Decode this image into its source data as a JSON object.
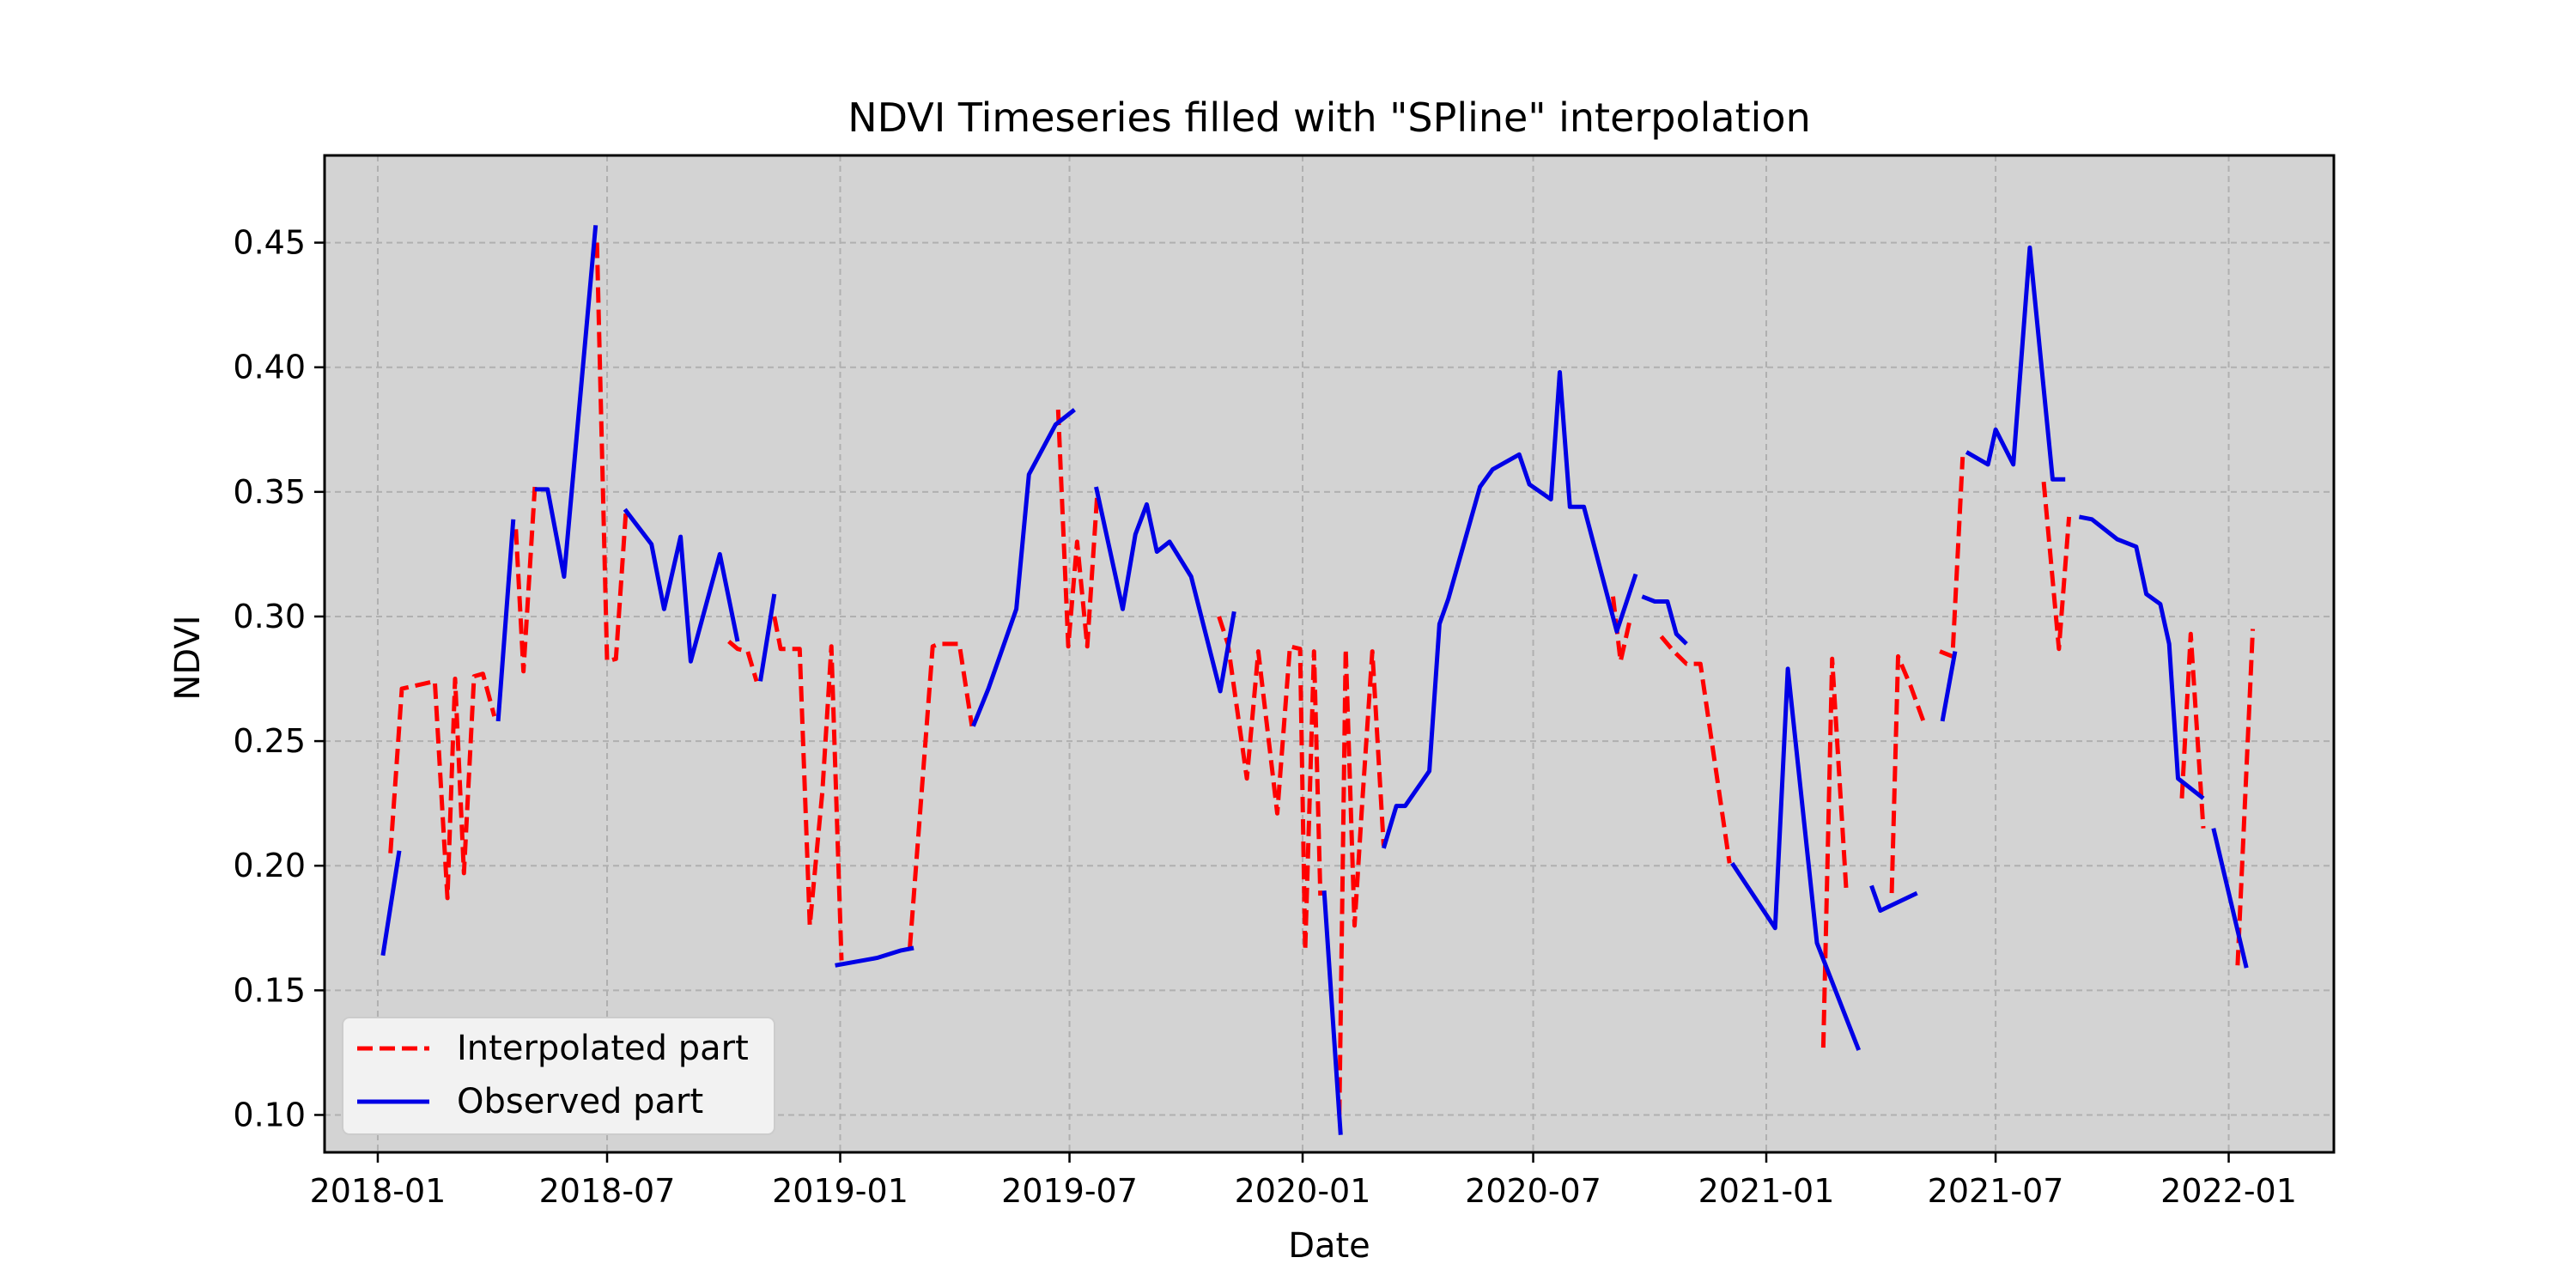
{
  "chart_data": {
    "type": "line",
    "title": "NDVI Timeseries filled with \"SPline\" interpolation",
    "xlabel": "Date",
    "ylabel": "NDVI",
    "x_tick_labels": [
      "2018-01",
      "2018-07",
      "2019-01",
      "2019-07",
      "2020-01",
      "2020-07",
      "2021-01",
      "2021-07",
      "2022-01"
    ],
    "y_tick_labels": [
      "0.10",
      "0.15",
      "0.20",
      "0.25",
      "0.30",
      "0.35",
      "0.40",
      "0.45"
    ],
    "ylim": [
      0.085,
      0.485
    ],
    "xlim": [
      "2017-11-20",
      "2022-03-25"
    ],
    "grid": true,
    "background": "#d3d3d3",
    "legend_position": "lower-left",
    "series": [
      {
        "name": "Interpolated part",
        "color": "#ff0000",
        "style": "dashed",
        "points": [
          [
            "2018-01-11",
            0.205
          ],
          [
            "2018-01-20",
            0.271
          ],
          [
            "2018-02-15",
            0.274
          ],
          [
            "2018-02-25",
            0.187
          ],
          [
            "2018-03-03",
            0.275
          ],
          [
            "2018-03-10",
            0.197
          ],
          [
            "2018-03-18",
            0.276
          ],
          [
            "2018-03-25",
            0.277
          ],
          [
            "2018-04-03",
            0.26
          ],
          null,
          [
            "2018-04-20",
            0.335
          ],
          [
            "2018-04-26",
            0.278
          ],
          [
            "2018-05-05",
            0.352
          ],
          null,
          [
            "2018-06-23",
            0.45
          ],
          [
            "2018-07-01",
            0.282
          ],
          [
            "2018-07-08",
            0.283
          ],
          [
            "2018-07-16",
            0.343
          ],
          null,
          [
            "2018-10-05",
            0.29
          ],
          [
            "2018-10-12",
            0.287
          ],
          [
            "2018-10-20",
            0.286
          ],
          [
            "2018-10-27",
            0.274
          ],
          null,
          [
            "2018-11-10",
            0.3
          ],
          [
            "2018-11-15",
            0.287
          ],
          [
            "2018-11-30",
            0.287
          ],
          [
            "2018-12-08",
            0.176
          ],
          [
            "2018-12-18",
            0.23
          ],
          [
            "2018-12-25",
            0.288
          ],
          [
            "2019-01-02",
            0.162
          ],
          null,
          [
            "2019-02-25",
            0.167
          ],
          [
            "2019-03-15",
            0.288
          ],
          [
            "2019-03-20",
            0.289
          ],
          [
            "2019-04-05",
            0.289
          ],
          [
            "2019-04-15",
            0.256
          ],
          null,
          [
            "2019-06-22",
            0.383
          ],
          [
            "2019-06-30",
            0.288
          ],
          [
            "2019-07-07",
            0.33
          ],
          [
            "2019-07-15",
            0.288
          ],
          [
            "2019-07-23",
            0.35
          ],
          null,
          [
            "2019-10-27",
            0.3
          ],
          [
            "2019-11-03",
            0.289
          ],
          [
            "2019-11-18",
            0.235
          ],
          [
            "2019-11-27",
            0.286
          ],
          [
            "2019-12-12",
            0.221
          ],
          [
            "2019-12-22",
            0.288
          ],
          [
            "2019-12-30",
            0.287
          ],
          [
            "2020-01-03",
            0.166
          ],
          [
            "2020-01-10",
            0.286
          ],
          [
            "2020-01-15",
            0.188
          ],
          null,
          [
            "2020-01-30",
            0.1
          ],
          [
            "2020-02-04",
            0.287
          ],
          [
            "2020-02-11",
            0.176
          ],
          [
            "2020-02-17",
            0.225
          ],
          [
            "2020-02-25",
            0.286
          ],
          [
            "2020-03-05",
            0.208
          ],
          null,
          [
            "2020-09-02",
            0.308
          ],
          [
            "2020-09-08",
            0.282
          ],
          [
            "2020-09-16",
            0.3
          ],
          null,
          [
            "2020-10-10",
            0.292
          ],
          [
            "2020-10-20",
            0.286
          ],
          [
            "2020-10-30",
            0.281
          ],
          [
            "2020-11-10",
            0.281
          ],
          [
            "2020-12-03",
            0.201
          ],
          null,
          [
            "2021-02-15",
            0.127
          ],
          [
            "2021-02-22",
            0.283
          ],
          [
            "2021-03-05",
            0.191
          ],
          null,
          [
            "2021-04-10",
            0.189
          ],
          [
            "2021-04-15",
            0.284
          ],
          [
            "2021-04-25",
            0.272
          ],
          [
            "2021-05-05",
            0.258
          ],
          null,
          [
            "2021-05-18",
            0.286
          ],
          [
            "2021-05-28",
            0.284
          ],
          [
            "2021-06-05",
            0.364
          ],
          null,
          [
            "2021-08-08",
            0.354
          ],
          [
            "2021-08-20",
            0.287
          ],
          [
            "2021-08-28",
            0.34
          ],
          null,
          [
            "2021-11-25",
            0.227
          ],
          [
            "2021-12-02",
            0.293
          ],
          [
            "2021-12-12",
            0.215
          ],
          null,
          [
            "2022-01-08",
            0.16
          ],
          [
            "2022-01-20",
            0.295
          ]
        ]
      },
      {
        "name": "Observed part",
        "color": "#0000e6",
        "style": "solid",
        "points": [
          [
            "2018-01-05",
            0.164
          ],
          [
            "2018-01-18",
            0.206
          ],
          null,
          [
            "2018-04-06",
            0.258
          ],
          [
            "2018-04-18",
            0.339
          ],
          null,
          [
            "2018-05-05",
            0.351
          ],
          [
            "2018-05-15",
            0.351
          ],
          [
            "2018-05-28",
            0.316
          ],
          [
            "2018-06-22",
            0.457
          ],
          null,
          [
            "2018-07-15",
            0.343
          ],
          [
            "2018-08-05",
            0.329
          ],
          [
            "2018-08-15",
            0.303
          ],
          [
            "2018-08-28",
            0.332
          ],
          [
            "2018-09-05",
            0.282
          ],
          [
            "2018-09-28",
            0.325
          ],
          [
            "2018-10-12",
            0.29
          ],
          null,
          [
            "2018-10-30",
            0.274
          ],
          [
            "2018-11-10",
            0.309
          ],
          null,
          [
            "2018-12-28",
            0.16
          ],
          [
            "2019-01-30",
            0.163
          ],
          [
            "2019-02-18",
            0.166
          ],
          [
            "2019-02-28",
            0.167
          ],
          null,
          [
            "2019-04-16",
            0.256
          ],
          [
            "2019-04-28",
            0.271
          ],
          [
            "2019-05-20",
            0.303
          ],
          [
            "2019-05-30",
            0.357
          ],
          [
            "2019-06-20",
            0.377
          ],
          [
            "2019-07-05",
            0.383
          ],
          null,
          [
            "2019-07-22",
            0.352
          ],
          [
            "2019-08-12",
            0.303
          ],
          [
            "2019-08-22",
            0.333
          ],
          [
            "2019-08-31",
            0.345
          ],
          [
            "2019-09-08",
            0.326
          ],
          [
            "2019-09-18",
            0.33
          ],
          [
            "2019-10-05",
            0.316
          ],
          [
            "2019-10-28",
            0.27
          ],
          [
            "2019-11-08",
            0.302
          ],
          null,
          [
            "2020-01-18",
            0.19
          ],
          [
            "2020-01-31",
            0.092
          ],
          null,
          [
            "2020-03-05",
            0.207
          ],
          [
            "2020-03-15",
            0.224
          ],
          [
            "2020-03-22",
            0.224
          ],
          [
            "2020-04-10",
            0.238
          ],
          [
            "2020-04-18",
            0.297
          ],
          [
            "2020-04-25",
            0.307
          ],
          [
            "2020-05-20",
            0.352
          ],
          [
            "2020-05-30",
            0.359
          ],
          [
            "2020-06-20",
            0.365
          ],
          [
            "2020-06-28",
            0.353
          ],
          [
            "2020-07-15",
            0.347
          ],
          [
            "2020-07-22",
            0.398
          ],
          [
            "2020-07-30",
            0.344
          ],
          [
            "2020-08-10",
            0.344
          ],
          [
            "2020-09-05",
            0.294
          ],
          [
            "2020-09-20",
            0.317
          ],
          null,
          [
            "2020-09-25",
            0.308
          ],
          [
            "2020-10-05",
            0.306
          ],
          [
            "2020-10-15",
            0.306
          ],
          [
            "2020-10-22",
            0.293
          ],
          [
            "2020-10-30",
            0.289
          ],
          null,
          [
            "2020-12-05",
            0.201
          ],
          [
            "2021-01-08",
            0.175
          ],
          [
            "2021-01-18",
            0.279
          ],
          [
            "2021-02-10",
            0.169
          ],
          [
            "2021-03-15",
            0.126
          ],
          null,
          [
            "2021-03-25",
            0.192
          ],
          [
            "2021-04-01",
            0.182
          ],
          [
            "2021-04-30",
            0.189
          ],
          null,
          [
            "2021-05-20",
            0.258
          ],
          [
            "2021-05-30",
            0.286
          ],
          null,
          [
            "2021-06-08",
            0.366
          ],
          [
            "2021-06-25",
            0.361
          ],
          [
            "2021-07-01",
            0.375
          ],
          [
            "2021-07-15",
            0.361
          ],
          [
            "2021-07-28",
            0.448
          ],
          [
            "2021-08-15",
            0.355
          ],
          [
            "2021-08-25",
            0.355
          ],
          null,
          [
            "2021-09-05",
            0.34
          ],
          [
            "2021-09-15",
            0.339
          ],
          [
            "2021-10-05",
            0.331
          ],
          [
            "2021-10-20",
            0.328
          ],
          [
            "2021-10-28",
            0.309
          ],
          [
            "2021-11-08",
            0.305
          ],
          [
            "2021-11-15",
            0.289
          ],
          [
            "2021-11-22",
            0.235
          ],
          [
            "2021-12-12",
            0.227
          ],
          null,
          [
            "2021-12-20",
            0.215
          ],
          [
            "2022-01-15",
            0.159
          ]
        ]
      }
    ]
  }
}
